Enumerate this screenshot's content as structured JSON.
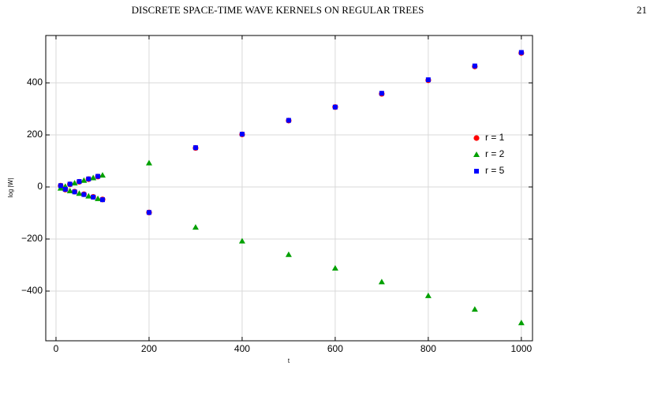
{
  "header": {
    "title": "DISCRETE SPACE-TIME WAVE KERNELS ON REGULAR TREES",
    "page_number": "21"
  },
  "chart_data": {
    "type": "scatter",
    "x_label": "t",
    "y_label": "log |W|",
    "x": [
      10,
      20,
      30,
      40,
      50,
      60,
      70,
      80,
      90,
      100,
      200,
      300,
      400,
      500,
      600,
      700,
      800,
      900,
      1000
    ],
    "series": [
      {
        "name": "r = 1",
        "color": "#ff0000",
        "marker": "circle",
        "values": [
          5,
          -10,
          10,
          -18,
          20,
          -28,
          30,
          -38,
          40,
          -48,
          -98,
          150,
          202,
          255,
          307,
          358,
          410,
          463,
          515
        ]
      },
      {
        "name": "r = 2",
        "color": "#00a000",
        "marker": "triangle",
        "values": [
          -5,
          2,
          -15,
          15,
          -25,
          25,
          -35,
          35,
          -45,
          45,
          92,
          -155,
          -208,
          -260,
          -312,
          -365,
          -418,
          -470,
          -522
        ]
      },
      {
        "name": "r = 5",
        "color": "#0000ff",
        "marker": "square",
        "values": [
          5,
          -9,
          11,
          -19,
          21,
          -29,
          31,
          -39,
          41,
          -49,
          -98,
          151,
          203,
          256,
          307,
          360,
          412,
          465,
          517
        ]
      }
    ],
    "xlim": [
      -22,
      1024
    ],
    "ylim": [
      -591,
      582
    ],
    "xticks": [
      0,
      200,
      400,
      600,
      800,
      1000
    ],
    "yticks": [
      {
        "value": -400,
        "label": "−400"
      },
      {
        "value": -200,
        "label": "−200"
      },
      0,
      200,
      400
    ],
    "grid": true,
    "legend": "right"
  }
}
